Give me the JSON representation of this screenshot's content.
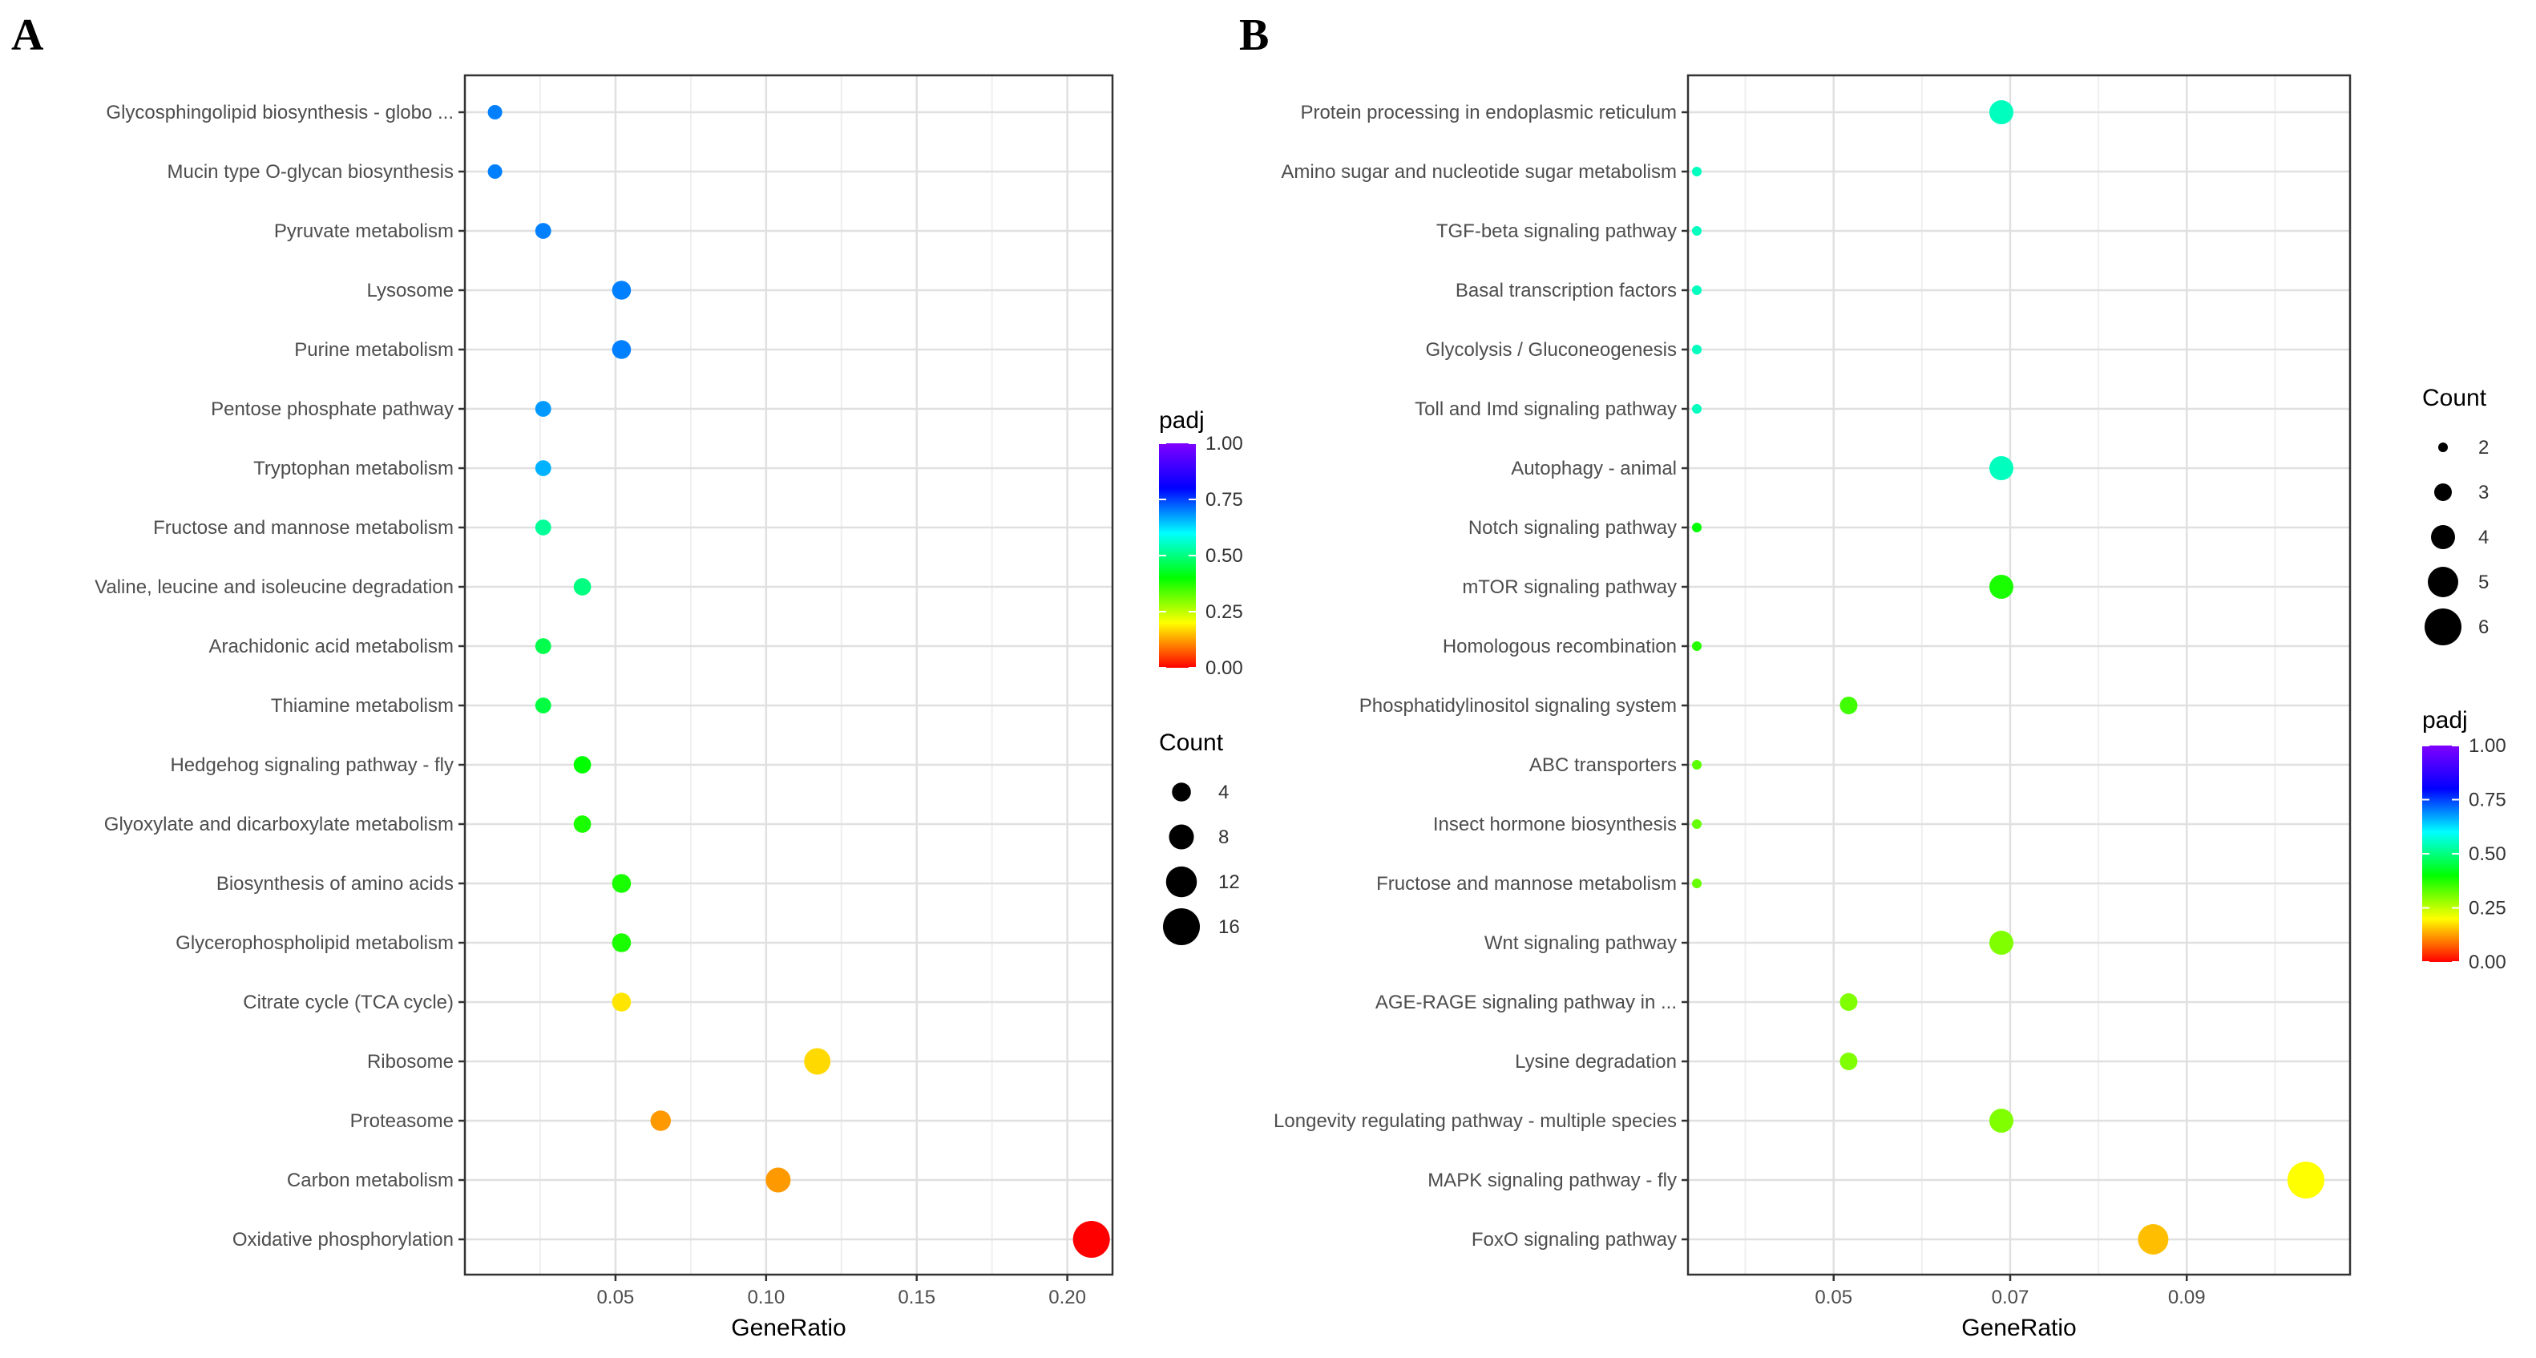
{
  "chart_data": [
    {
      "panel": "A",
      "type": "scatter",
      "xlabel": "GeneRatio",
      "ylabel": "",
      "xlim": [
        0.0,
        0.215
      ],
      "xticks": [
        0.05,
        0.1,
        0.15,
        0.2
      ],
      "xtick_labels": [
        "0.05",
        "0.10",
        "0.15",
        "0.20"
      ],
      "grid": true,
      "categories": [
        "Glycosphingolipid biosynthesis - globo ...",
        "Mucin type O-glycan biosynthesis",
        "Pyruvate metabolism",
        "Lysosome",
        "Purine metabolism",
        "Pentose phosphate pathway",
        "Tryptophan metabolism",
        "Fructose and mannose metabolism",
        "Valine, leucine and isoleucine degradation",
        "Arachidonic acid metabolism",
        "Thiamine metabolism",
        "Hedgehog signaling pathway - fly",
        "Glyoxylate and dicarboxylate metabolism",
        "Biosynthesis of amino acids",
        "Glycerophospholipid metabolism",
        "Citrate cycle (TCA cycle)",
        "Ribosome",
        "Proteasome",
        "Carbon metabolism",
        "Oxidative phosphorylation"
      ],
      "gene_ratio": [
        0.01,
        0.01,
        0.026,
        0.052,
        0.052,
        0.026,
        0.026,
        0.026,
        0.039,
        0.026,
        0.026,
        0.039,
        0.039,
        0.052,
        0.052,
        0.052,
        0.117,
        0.065,
        0.104,
        0.208
      ],
      "count": [
        1,
        1,
        2,
        4,
        4,
        2,
        2,
        2,
        3,
        2,
        2,
        3,
        3,
        4,
        4,
        4,
        9,
        5,
        8,
        16
      ],
      "padj": [
        0.7,
        0.7,
        0.7,
        0.7,
        0.7,
        0.68,
        0.66,
        0.52,
        0.5,
        0.46,
        0.45,
        0.4,
        0.38,
        0.38,
        0.38,
        0.18,
        0.17,
        0.12,
        0.12,
        0.0
      ],
      "color_legend": {
        "title": "padj",
        "ticks": [
          1.0,
          0.75,
          0.5,
          0.25,
          0.0
        ],
        "tick_labels": [
          "1.00",
          "0.75",
          "0.50",
          "0.25",
          "0.00"
        ],
        "scale": [
          "#ff0000",
          "#ffff00",
          "#00ff00",
          "#00ffff",
          "#0000ff",
          "#8000ff"
        ]
      },
      "size_legend": {
        "title": "Count",
        "values": [
          4,
          8,
          12,
          16
        ],
        "labels": [
          "4",
          "8",
          "12",
          "16"
        ],
        "range": [
          1,
          16
        ]
      }
    },
    {
      "panel": "B",
      "type": "scatter",
      "xlabel": "GeneRatio",
      "ylabel": "",
      "xlim": [
        0.0335,
        0.1085
      ],
      "xticks": [
        0.05,
        0.07,
        0.09
      ],
      "xtick_labels": [
        "0.05",
        "0.07",
        "0.09"
      ],
      "grid": true,
      "categories": [
        "Protein processing in endoplasmic reticulum",
        "Amino sugar and nucleotide sugar metabolism",
        "TGF-beta signaling pathway",
        "Basal transcription factors",
        "Glycolysis / Gluconeogenesis",
        "Toll and Imd signaling pathway",
        "Autophagy - animal",
        "Notch signaling pathway",
        "mTOR signaling pathway",
        "Homologous recombination",
        "Phosphatidylinositol signaling system",
        "ABC transporters",
        "Insect hormone biosynthesis",
        "Fructose and mannose metabolism",
        "Wnt signaling pathway",
        "AGE-RAGE signaling pathway in ...",
        "Lysine degradation",
        "Longevity regulating pathway - multiple species",
        "MAPK signaling pathway - fly",
        "FoxO signaling pathway"
      ],
      "gene_ratio": [
        0.069,
        0.0345,
        0.0345,
        0.0345,
        0.0345,
        0.0345,
        0.069,
        0.0345,
        0.069,
        0.0345,
        0.0517,
        0.0345,
        0.0345,
        0.0345,
        0.069,
        0.0517,
        0.0517,
        0.069,
        0.1035,
        0.0862
      ],
      "count": [
        4,
        2,
        2,
        2,
        2,
        2,
        4,
        2,
        4,
        2,
        3,
        2,
        2,
        2,
        4,
        3,
        3,
        4,
        6,
        5
      ],
      "padj": [
        0.55,
        0.55,
        0.55,
        0.55,
        0.55,
        0.55,
        0.55,
        0.4,
        0.38,
        0.37,
        0.35,
        0.33,
        0.32,
        0.32,
        0.3,
        0.3,
        0.3,
        0.3,
        0.2,
        0.15
      ],
      "color_legend": {
        "title": "padj",
        "ticks": [
          1.0,
          0.75,
          0.5,
          0.25,
          0.0
        ],
        "tick_labels": [
          "1.00",
          "0.75",
          "0.50",
          "0.25",
          "0.00"
        ],
        "scale": [
          "#ff0000",
          "#ffff00",
          "#00ff00",
          "#00ffff",
          "#0000ff",
          "#8000ff"
        ]
      },
      "size_legend": {
        "title": "Count",
        "values": [
          2,
          3,
          4,
          5,
          6
        ],
        "labels": [
          "2",
          "3",
          "4",
          "5",
          "6"
        ],
        "range": [
          2,
          6
        ]
      }
    }
  ]
}
